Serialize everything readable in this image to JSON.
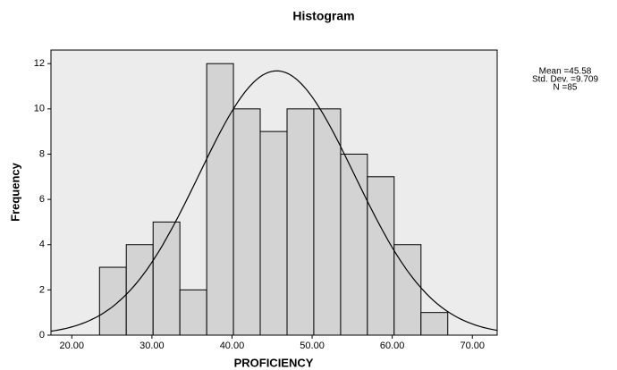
{
  "chart_data": {
    "type": "histogram",
    "title": "Histogram",
    "x_label": "PROFICIENCY",
    "y_label": "Frequency",
    "bins": [
      23.46,
      26.8,
      30.15,
      33.49,
      36.84,
      40.18,
      43.52,
      46.87,
      50.21,
      53.56,
      56.9,
      60.24,
      63.59,
      66.93
    ],
    "values": [
      3,
      4,
      5,
      2,
      12,
      10,
      9,
      10,
      10,
      8,
      7,
      4,
      1
    ],
    "color": "#d3d3d3",
    "xlim": [
      17.4,
      73.1
    ],
    "xticks": [
      {
        "value": 20,
        "label": "20.00"
      },
      {
        "value": 30,
        "label": "30.00"
      },
      {
        "value": 40,
        "label": "40.00"
      },
      {
        "value": 50,
        "label": "50.00"
      },
      {
        "value": 60,
        "label": "60.00"
      },
      {
        "value": 70,
        "label": "70.00"
      }
    ],
    "ylim": [
      0,
      12.6
    ],
    "yticks": [
      0,
      2,
      4,
      6,
      8,
      10,
      12
    ],
    "normal_curve": {
      "mean": 45.58,
      "std": 9.709,
      "n": 85
    },
    "stats_labels": [
      "Mean =45.58",
      "Std. Dev. =9.709",
      "N =85"
    ]
  }
}
